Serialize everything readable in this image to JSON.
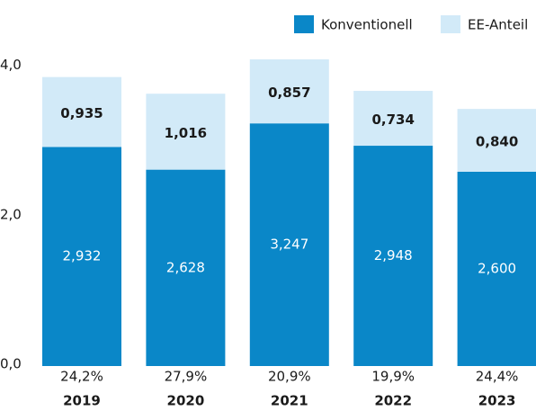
{
  "chart_data": {
    "type": "stacked-bar",
    "categories": [
      "2019",
      "2020",
      "2021",
      "2022",
      "2023"
    ],
    "series": [
      {
        "name": "Konventionell",
        "color": "#0a87c8",
        "values": [
          2.932,
          2.628,
          3.247,
          2.948,
          2.6
        ],
        "value_labels": [
          "2,932",
          "2,628",
          "3,247",
          "2,948",
          "2,600"
        ]
      },
      {
        "name": "EE-Anteil",
        "color": "#d2eaf8",
        "values": [
          0.935,
          1.016,
          0.857,
          0.734,
          0.84
        ],
        "value_labels": [
          "0,935",
          "1,016",
          "0,857",
          "0,734",
          "0,840"
        ]
      }
    ],
    "ee_share_labels": [
      "24,2%",
      "27,9%",
      "20,9%",
      "19,9%",
      "24,4%"
    ],
    "ylim": [
      0,
      4.2
    ],
    "yticks": [
      {
        "value": 0,
        "label": "0,0"
      },
      {
        "value": 2,
        "label": "2,0"
      },
      {
        "value": 4,
        "label": "4,0"
      }
    ],
    "grid": false
  }
}
